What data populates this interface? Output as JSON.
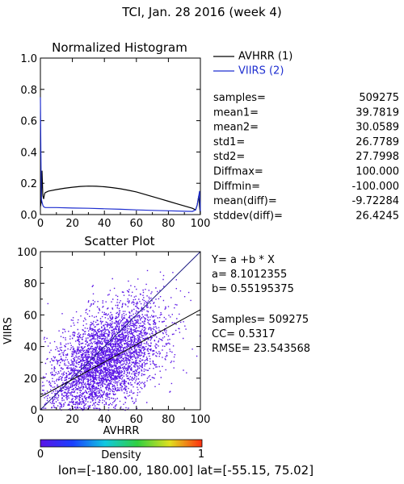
{
  "title": "TCI,  Jan. 28 2016 (week 4)",
  "histogram": {
    "title": "Normalized Histogram",
    "xlim": [
      0,
      100
    ],
    "ylim": [
      0,
      1.0
    ],
    "xticks": [
      "0",
      "20",
      "40",
      "60",
      "80",
      "100"
    ],
    "yticks": [
      "0.0",
      "0.2",
      "0.4",
      "0.6",
      "0.8",
      "1.0"
    ],
    "legend": [
      {
        "name": "AVHRR (1)",
        "color": "#000000"
      },
      {
        "name": "VIIRS (2)",
        "color": "#1f2fd0"
      }
    ]
  },
  "stats": [
    {
      "label": "samples=",
      "value": "509275"
    },
    {
      "label": "mean1=",
      "value": "39.7819"
    },
    {
      "label": "mean2=",
      "value": "30.0589"
    },
    {
      "label": "std1=",
      "value": "26.7789"
    },
    {
      "label": "std2=",
      "value": "27.7998"
    },
    {
      "label": "Diffmax=",
      "value": "100.000"
    },
    {
      "label": "Diffmin=",
      "value": "-100.000"
    },
    {
      "label": "mean(diff)=",
      "value": "-9.72284"
    },
    {
      "label": "stddev(diff)=",
      "value": "26.4245"
    }
  ],
  "scatter": {
    "title": "Scatter Plot",
    "xlabel": "AVHRR",
    "ylabel": "VIIRS",
    "xlim": [
      0,
      100
    ],
    "ylim": [
      0,
      100
    ],
    "xticks": [
      "0",
      "20",
      "40",
      "60",
      "80",
      "100"
    ],
    "yticks": [
      "0",
      "20",
      "40",
      "60",
      "80",
      "100"
    ],
    "point_color": "#5a14e6"
  },
  "regression": {
    "equation": "Y= a +b * X",
    "a_text": "a= 8.1012355",
    "b_text": "b= 0.55195375",
    "samples_text": "Samples= 509275",
    "cc_text": "CC=  0.5317",
    "rmse_text": "RMSE= 23.543568"
  },
  "colorbar": {
    "label": "Density",
    "min_label": "0",
    "max_label": "1"
  },
  "footer": "lon=[-180.00, 180.00] lat=[-55.15, 75.02]",
  "chart_data": [
    {
      "type": "line",
      "title": "Normalized Histogram",
      "xlim": [
        0,
        100
      ],
      "ylim": [
        0,
        1.0
      ],
      "series": [
        {
          "name": "AVHRR (1)",
          "x": [
            0,
            0.5,
            1,
            1.5,
            2,
            2.5,
            3,
            5,
            10,
            15,
            20,
            25,
            30,
            35,
            40,
            45,
            50,
            55,
            60,
            65,
            70,
            75,
            80,
            85,
            90,
            95,
            97,
            98,
            99,
            99.5,
            100
          ],
          "y": [
            0.05,
            0.08,
            0.28,
            0.12,
            0.1,
            0.13,
            0.14,
            0.15,
            0.16,
            0.168,
            0.175,
            0.18,
            0.182,
            0.181,
            0.178,
            0.172,
            0.165,
            0.155,
            0.145,
            0.13,
            0.115,
            0.1,
            0.085,
            0.07,
            0.055,
            0.04,
            0.03,
            0.06,
            0.12,
            0.05,
            0.0
          ]
        },
        {
          "name": "VIIRS (2)",
          "x": [
            0,
            0.3,
            0.6,
            1,
            1.5,
            2,
            3,
            5,
            10,
            20,
            30,
            40,
            50,
            60,
            70,
            80,
            90,
            95,
            97,
            98,
            99,
            99.5,
            100
          ],
          "y": [
            0.75,
            0.4,
            0.1,
            0.08,
            0.06,
            0.05,
            0.045,
            0.045,
            0.045,
            0.042,
            0.04,
            0.037,
            0.034,
            0.03,
            0.027,
            0.024,
            0.021,
            0.02,
            0.03,
            0.06,
            0.12,
            0.15,
            0.02
          ]
        }
      ]
    },
    {
      "type": "scatter",
      "title": "Scatter Plot",
      "xlabel": "AVHRR",
      "ylabel": "VIIRS",
      "xlim": [
        0,
        100
      ],
      "ylim": [
        0,
        100
      ],
      "regression": {
        "a": 8.1012355,
        "b": 0.55195375
      },
      "identity_line": true,
      "samples": 509275,
      "x_mean": 39.7819,
      "y_mean": 30.0589
    }
  ]
}
